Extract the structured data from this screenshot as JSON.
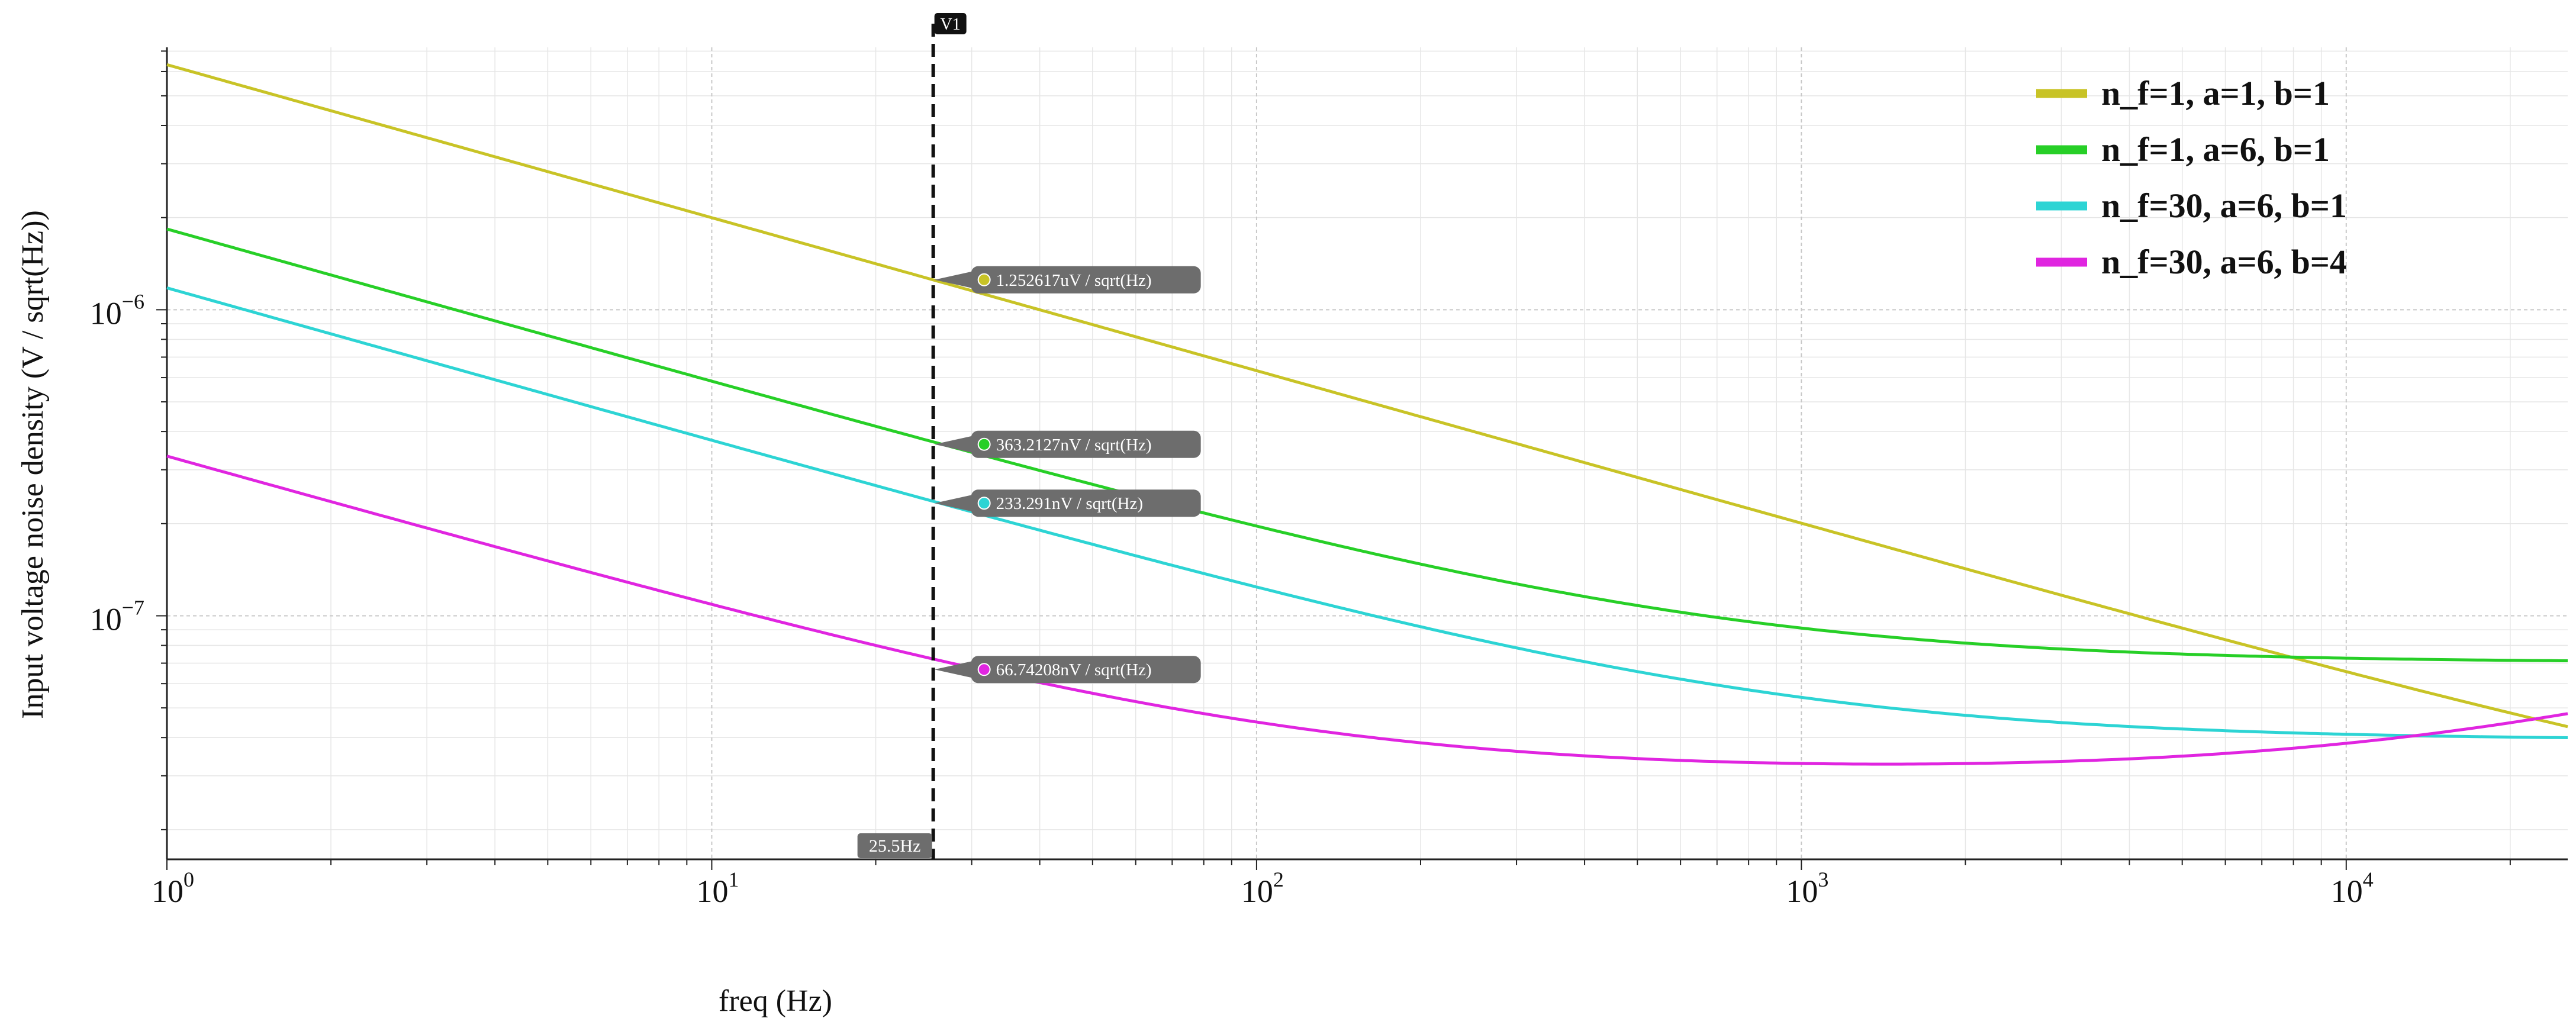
{
  "chart_data": {
    "type": "line",
    "xscale": "log",
    "yscale": "log",
    "xlim": [
      1,
      25500
    ],
    "ylim": [
      1.6e-08,
      7.2e-06
    ],
    "xlabel": "freq (Hz)",
    "ylabel": "Input voltage noise density  (V / sqrt(Hz))",
    "x_ticks": [
      {
        "base": "10",
        "exp": "0",
        "value": 1
      },
      {
        "base": "10",
        "exp": "1",
        "value": 10
      },
      {
        "base": "10",
        "exp": "2",
        "value": 100
      },
      {
        "base": "10",
        "exp": "3",
        "value": 1000
      },
      {
        "base": "10",
        "exp": "4",
        "value": 10000
      }
    ],
    "y_ticks": [
      {
        "base": "10",
        "exp": "−7",
        "value": 1e-07
      },
      {
        "base": "10",
        "exp": "−6",
        "value": 1e-06
      }
    ],
    "series": [
      {
        "name": "n_f=1, a=1, b=1",
        "color": "#c8c326",
        "a": 6.32e-06,
        "corner_hz": 125000
      },
      {
        "name": "n_f=1, a=6, b=1",
        "color": "#27cf27",
        "a": 1.834e-06,
        "corner_hz": 680
      },
      {
        "name": "n_f=30, a=6, b=1",
        "color": "#2dd4d4",
        "a": 1.178e-06,
        "corner_hz": 900
      },
      {
        "name": "n_f=30, a=6, b=4",
        "color": "#e025e0",
        "a": 3.31e-07,
        "corner_hz": 120,
        "rise_hz": 17000
      }
    ],
    "cursor": {
      "name": "V1",
      "x": 25.5,
      "label": "25.5Hz"
    },
    "annotations": [
      {
        "series": 0,
        "text": "1.252617uV / sqrt(Hz)",
        "value": 1.252617e-06
      },
      {
        "series": 1,
        "text": "363.2127nV / sqrt(Hz)",
        "value": 3.632127e-07
      },
      {
        "series": 2,
        "text": "233.291nV / sqrt(Hz)",
        "value": 2.33291e-07
      },
      {
        "series": 3,
        "text": "66.74208nV / sqrt(Hz)",
        "value": 6.674208e-08
      }
    ],
    "legend_position": "top-right",
    "grid": true
  }
}
